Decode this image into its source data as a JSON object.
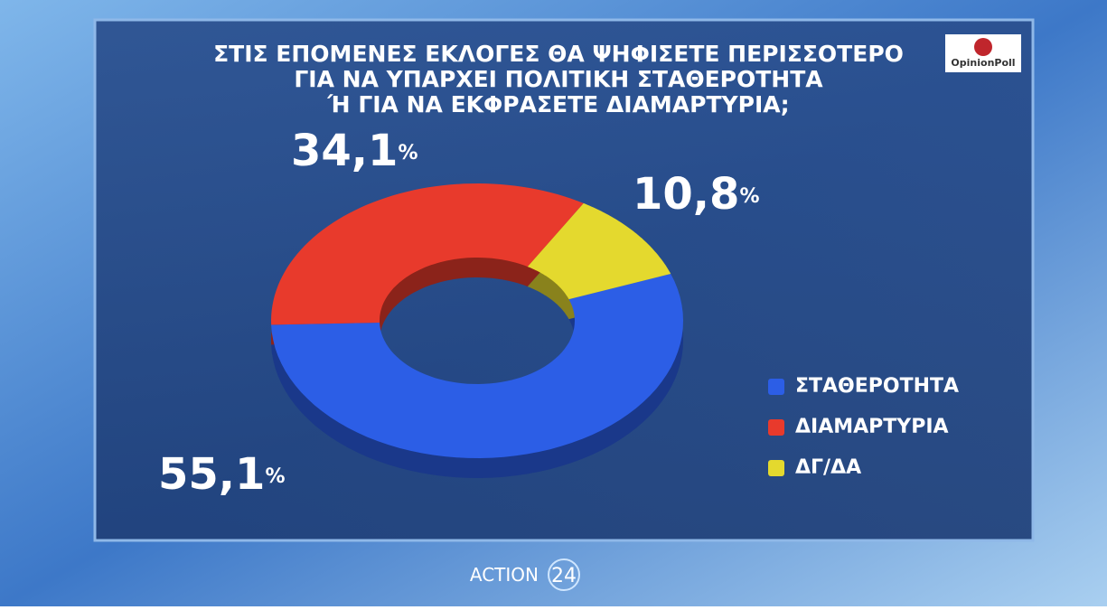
{
  "chart_data": {
    "type": "donut",
    "title": [
      "ΣΤΙΣ ΕΠΟΜΕΝΕΣ ΕΚΛΟΓΕΣ ΘΑ ΨΗΦΙΣΕΤΕ ΠΕΡΙΣΣΟΤΕΡΟ",
      "ΓΙΑ ΝΑ ΥΠΑΡΧΕΙ ΠΟΛΙΤΙΚΗ ΣΤΑΘΕΡΟΤΗΤΑ",
      "Ή ΓΙΑ ΝΑ ΕΚΦΡΑΣΕΤΕ ΔΙΑΜΑΡΤΥΡΙΑ;"
    ],
    "categories": [
      "ΣΤΑΘΕΡΟΤΗΤΑ",
      "ΔΙΑΜΑΡΤΥΡΙΑ",
      "ΔΓ/ΔΑ"
    ],
    "values": [
      55.1,
      34.1,
      10.8
    ],
    "value_labels": [
      "55,1%",
      "34,1%",
      "10,8%"
    ],
    "colors": [
      "#2c5ee6",
      "#e83a2c",
      "#e4d92e"
    ],
    "legend": "right"
  },
  "logos": {
    "pollster": "OpinionPoll",
    "channel": "ACTION",
    "channel_number": "24"
  }
}
